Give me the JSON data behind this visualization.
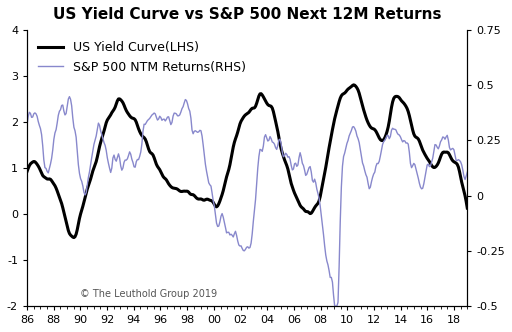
{
  "title": "US Yield Curve vs S&P 500 Next 12M Returns",
  "legend_line1": "US Yield Curve(LHS)",
  "legend_line2": "S&P 500 NTM Returns(RHS)",
  "copyright": "© The Leuthold Group 2019",
  "lhs_color": "#000000",
  "rhs_color": "#8888cc",
  "lhs_linewidth": 2.2,
  "rhs_linewidth": 1.0,
  "xlim": [
    1986,
    2019
  ],
  "lhs_ylim": [
    -2,
    4
  ],
  "rhs_ylim": [
    -0.5,
    0.75
  ],
  "xticks": [
    86,
    88,
    90,
    92,
    94,
    96,
    98,
    0,
    2,
    4,
    6,
    8,
    10,
    12,
    14,
    16,
    18
  ],
  "xtick_labels": [
    "86",
    "88",
    "90",
    "92",
    "94",
    "96",
    "98",
    "00",
    "02",
    "04",
    "06",
    "08",
    "10",
    "12",
    "14",
    "16",
    "18"
  ],
  "lhs_yticks": [
    -2,
    -1,
    0,
    1,
    2,
    3,
    4
  ],
  "rhs_yticks": [
    -0.5,
    -0.25,
    0,
    0.25,
    0.5,
    0.75
  ],
  "background_color": "#ffffff",
  "title_fontsize": 11,
  "legend_fontsize": 9,
  "tick_fontsize": 8,
  "figsize": [
    5.12,
    3.32
  ],
  "dpi": 100
}
